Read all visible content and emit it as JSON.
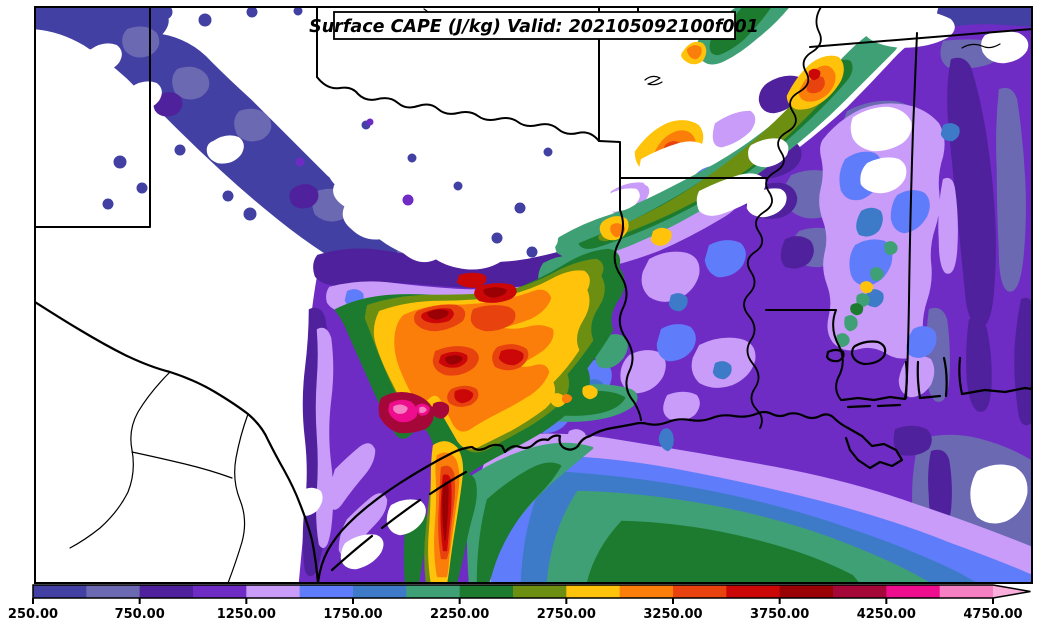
{
  "title": "Surface CAPE (J/kg) Valid: 202105092100f001",
  "colorbar": {
    "tick_labels": [
      "250.00",
      "750.00",
      "1250.00",
      "1750.00",
      "2250.00",
      "2750.00",
      "3250.00",
      "3750.00",
      "4250.00",
      "4750.00"
    ],
    "tick_values": [
      250,
      750,
      1250,
      1750,
      2250,
      2750,
      3250,
      3750,
      4250,
      4750
    ]
  },
  "chart_data": {
    "type": "filled_contour_map",
    "title": "Surface CAPE (J/kg) Valid: 202105092100f001",
    "variable": "Surface CAPE",
    "units": "J/kg",
    "valid_label": "202105092100f001",
    "contour_levels": [
      250,
      500,
      750,
      1000,
      1250,
      1500,
      1750,
      2000,
      2250,
      2500,
      2750,
      3000,
      3250,
      3500,
      3750,
      4000,
      4250,
      4500,
      4750
    ],
    "palette": [
      "#4240A3",
      "#6B69B2",
      "#50219C",
      "#6E2CC4",
      "#C89CF8",
      "#5F7CFA",
      "#3D7BC8",
      "#3FA076",
      "#1C7B2F",
      "#6C8F12",
      "#FFC30B",
      "#FB7E0A",
      "#E8420E",
      "#CC0707",
      "#990105",
      "#A50838",
      "#ED0D8D",
      "#F47FC2"
    ],
    "extend": "max",
    "extend_color": "#F9AEDC",
    "below_min_color": "#ffffff",
    "legend_position": "bottom horizontal colorbar with arrow on right end",
    "region": "South-central United States and Gulf of Mexico: Texas, New Mexico edge, Oklahoma, Arkansas, Louisiana, Mississippi, Alabama, northern Mexico",
    "features": [
      "Broad CAPE maximum (3000-4750+ J/kg, orange/red with small magenta >4250 cores) over south-central Texas extending to the middle Texas coast",
      "Diagonal band of low CAPE (250-750 J/kg, slate blue) from the Texas panhandle / New Mexico border southeast toward central Texas",
      "White (<250 J/kg) over north Texas, Oklahoma and northern Mexico",
      "Green/gold band (2000-3250 J/kg) from northeast Texas across Arkansas into northern Mississippi",
      "Widespread 750-1500 J/kg (purple/lavender) over Louisiana, Mississippi and Alabama",
      "Concentric 1250-2500 J/kg bands (lavender/blue/green) over the Gulf of Mexico, dark green core south of Louisiana"
    ]
  }
}
